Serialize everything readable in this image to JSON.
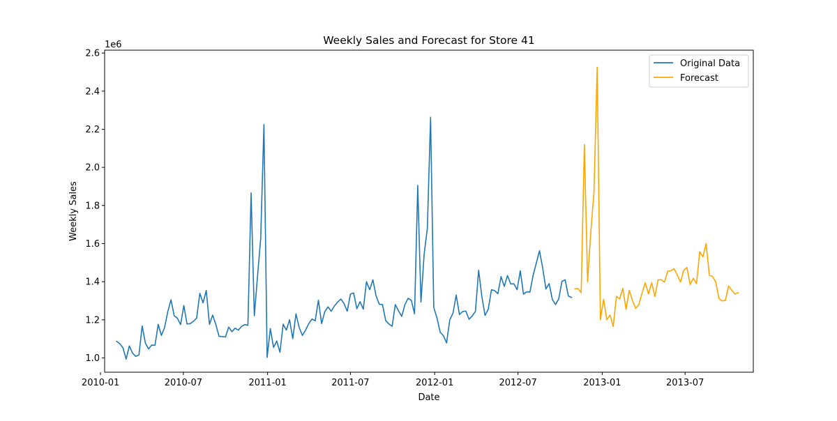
{
  "chart_data": {
    "type": "line",
    "title": "Weekly Sales and Forecast for Store 41",
    "xlabel": "Date",
    "ylabel": "Weekly Sales",
    "y_multiplier_label": "1e6",
    "ylim": [
      0.925,
      2.615
    ],
    "xlim": [
      "2010-01-10",
      "2013-11-27"
    ],
    "x_ticks": [
      {
        "date": "2010-01-01",
        "label": "2010-01"
      },
      {
        "date": "2010-07-01",
        "label": "2010-07"
      },
      {
        "date": "2011-01-01",
        "label": "2011-01"
      },
      {
        "date": "2011-07-01",
        "label": "2011-07"
      },
      {
        "date": "2012-01-01",
        "label": "2012-01"
      },
      {
        "date": "2012-07-01",
        "label": "2012-07"
      },
      {
        "date": "2013-01-01",
        "label": "2013-01"
      },
      {
        "date": "2013-07-01",
        "label": "2013-07"
      }
    ],
    "y_ticks": [
      {
        "value": 1.0,
        "label": "1.0"
      },
      {
        "value": 1.2,
        "label": "1.2"
      },
      {
        "value": 1.4,
        "label": "1.4"
      },
      {
        "value": 1.6,
        "label": "1.6"
      },
      {
        "value": 1.8,
        "label": "1.8"
      },
      {
        "value": 2.0,
        "label": "2.0"
      },
      {
        "value": 2.2,
        "label": "2.2"
      },
      {
        "value": 2.4,
        "label": "2.4"
      },
      {
        "value": 2.6,
        "label": "2.6"
      }
    ],
    "grid": false,
    "legend_position": "top-right",
    "series": [
      {
        "name": "Original Data",
        "color": "#1f77b4",
        "start_date": "2010-02-05",
        "interval_days": 7,
        "values": [
          1.087,
          1.075,
          1.053,
          0.994,
          1.063,
          1.025,
          1.008,
          1.016,
          1.168,
          1.078,
          1.047,
          1.068,
          1.066,
          1.176,
          1.118,
          1.16,
          1.243,
          1.305,
          1.221,
          1.208,
          1.175,
          1.275,
          1.178,
          1.18,
          1.192,
          1.209,
          1.339,
          1.289,
          1.354,
          1.176,
          1.225,
          1.175,
          1.113,
          1.112,
          1.11,
          1.162,
          1.138,
          1.156,
          1.146,
          1.165,
          1.175,
          1.171,
          1.866,
          1.221,
          1.428,
          1.629,
          2.225,
          1.003,
          1.154,
          1.055,
          1.089,
          1.03,
          1.177,
          1.146,
          1.2,
          1.101,
          1.231,
          1.16,
          1.118,
          1.146,
          1.18,
          1.204,
          1.195,
          1.303,
          1.18,
          1.243,
          1.268,
          1.245,
          1.273,
          1.293,
          1.309,
          1.285,
          1.245,
          1.335,
          1.341,
          1.258,
          1.295,
          1.256,
          1.4,
          1.358,
          1.41,
          1.325,
          1.282,
          1.28,
          1.196,
          1.178,
          1.166,
          1.28,
          1.247,
          1.218,
          1.28,
          1.313,
          1.302,
          1.232,
          1.905,
          1.293,
          1.545,
          1.68,
          2.263,
          1.265,
          1.21,
          1.135,
          1.117,
          1.079,
          1.2,
          1.235,
          1.33,
          1.228,
          1.243,
          1.246,
          1.203,
          1.22,
          1.244,
          1.46,
          1.323,
          1.223,
          1.255,
          1.358,
          1.353,
          1.337,
          1.427,
          1.375,
          1.432,
          1.388,
          1.389,
          1.358,
          1.457,
          1.335,
          1.347,
          1.345,
          1.433,
          1.498,
          1.562,
          1.471,
          1.362,
          1.39,
          1.307,
          1.28,
          1.31,
          1.402,
          1.41,
          1.325,
          1.317
        ]
      },
      {
        "name": "Forecast",
        "color": "#ffa500",
        "start_date": "2012-11-02",
        "interval_days": 7,
        "values": [
          1.363,
          1.364,
          1.342,
          2.12,
          1.4,
          1.66,
          1.87,
          2.526,
          1.2,
          1.308,
          1.2,
          1.225,
          1.165,
          1.323,
          1.31,
          1.365,
          1.255,
          1.355,
          1.301,
          1.26,
          1.28,
          1.34,
          1.395,
          1.335,
          1.395,
          1.322,
          1.41,
          1.41,
          1.398,
          1.455,
          1.458,
          1.468,
          1.435,
          1.398,
          1.46,
          1.475,
          1.385,
          1.418,
          1.39,
          1.557,
          1.53,
          1.6,
          1.433,
          1.428,
          1.398,
          1.312,
          1.299,
          1.302,
          1.377,
          1.355,
          1.335,
          1.343
        ]
      }
    ]
  }
}
